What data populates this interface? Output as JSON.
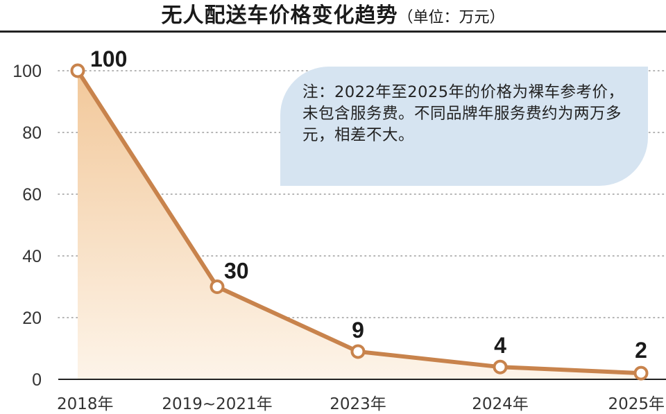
{
  "title": "无人配送车价格变化趋势",
  "unit": "（单位：万元）",
  "note": "注：2022年至2025年的价格为裸车参考价，未包含服务费。不同品牌年服务费约为两万多元，相差不大。",
  "colors": {
    "line": "#c8834c",
    "area_top": "#f2c89a",
    "area_bottom": "#fdf4e9",
    "note_bg": "#d6e4f1",
    "grid": "#9a9a9a"
  },
  "chart_data": {
    "type": "area",
    "title": "无人配送车价格变化趋势",
    "unit": "（单位：万元）",
    "categories": [
      "2018年",
      "2019~2021年",
      "2023年",
      "2024年",
      "2025年"
    ],
    "values": [
      100,
      30,
      9,
      4,
      2
    ],
    "data_labels": [
      "100",
      "30",
      "9",
      "4",
      "2"
    ],
    "ylim": [
      0,
      100
    ],
    "yticks": [
      "0",
      "20",
      "40",
      "60",
      "80",
      "100"
    ],
    "grid": true,
    "xlabel": "",
    "ylabel": ""
  }
}
